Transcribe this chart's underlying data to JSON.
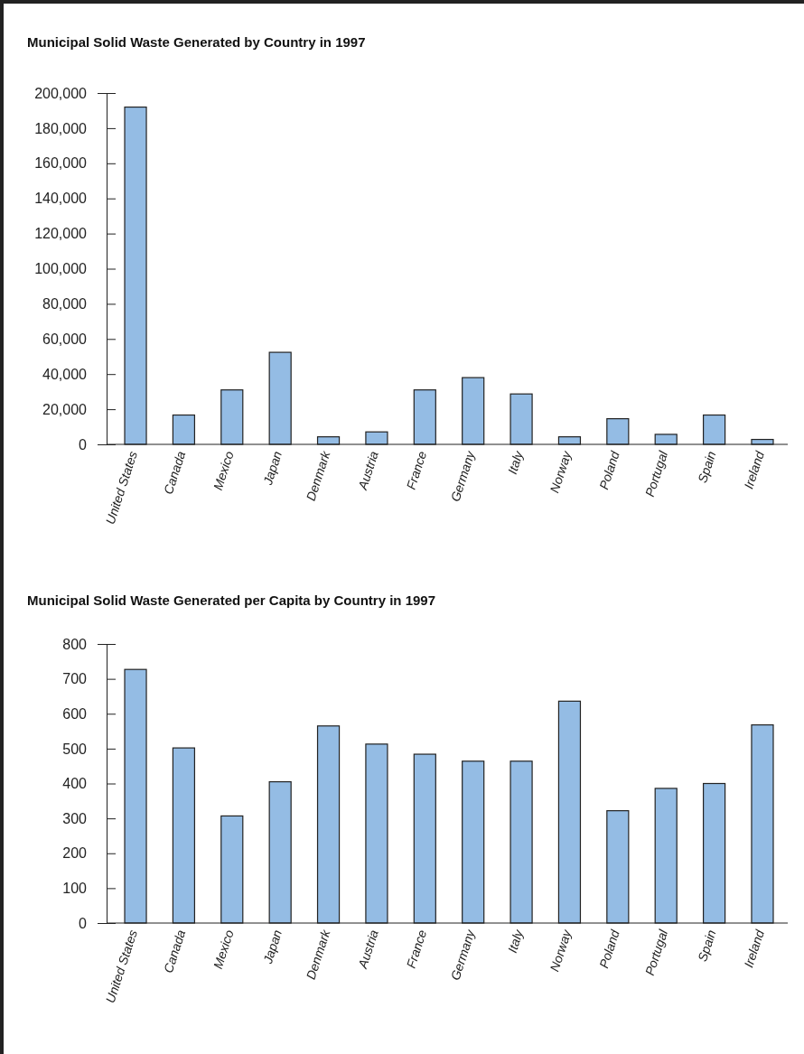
{
  "chart_data": [
    {
      "type": "bar",
      "title": "Municipal Solid Waste Generated by Country in 1997",
      "categories": [
        "United States",
        "Canada",
        "Mexico",
        "Japan",
        "Denmark",
        "Austria",
        "France",
        "Germany",
        "Italy",
        "Norway",
        "Poland",
        "Portugal",
        "Spain",
        "Ireland"
      ],
      "values": [
        192000,
        16700,
        31000,
        52400,
        4300,
        7100,
        31000,
        38000,
        28700,
        4300,
        14600,
        5700,
        16700,
        2800
      ],
      "color": "#94bce4",
      "ylim": [
        0,
        200000
      ],
      "yticks": [
        {
          "value": 0,
          "label": "0"
        },
        {
          "value": 20000,
          "label": "20,000"
        },
        {
          "value": 40000,
          "label": "40,000"
        },
        {
          "value": 60000,
          "label": "60,000"
        },
        {
          "value": 80000,
          "label": "80,000"
        },
        {
          "value": 100000,
          "label": "100,000"
        },
        {
          "value": 120000,
          "label": "120,000"
        },
        {
          "value": 140000,
          "label": "140,000"
        },
        {
          "value": 160000,
          "label": "160,000"
        },
        {
          "value": 180000,
          "label": "180,000"
        },
        {
          "value": 200000,
          "label": "200,000"
        }
      ]
    },
    {
      "type": "bar",
      "title": "Municipal Solid Waste Generated per Capita by Country in 1997",
      "categories": [
        "United States",
        "Canada",
        "Mexico",
        "Japan",
        "Denmark",
        "Austria",
        "France",
        "Germany",
        "Italy",
        "Norway",
        "Poland",
        "Portugal",
        "Spain",
        "Ireland"
      ],
      "values": [
        727,
        502,
        307,
        405,
        565,
        513,
        484,
        464,
        464,
        636,
        322,
        386,
        400,
        568
      ],
      "color": "#94bce4",
      "ylim": [
        0,
        800
      ],
      "yticks": [
        0,
        100,
        200,
        300,
        400,
        500,
        600,
        700,
        800
      ]
    }
  ]
}
